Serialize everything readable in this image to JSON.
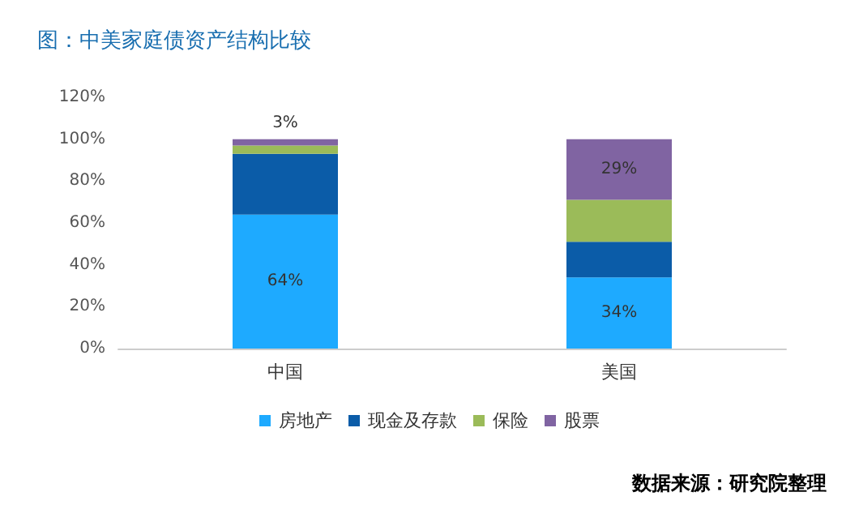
{
  "chart_data": {
    "type": "bar",
    "title": "图：中美家庭债资产结构比较",
    "annotations": [
      "数据来源：研究院整理"
    ],
    "categories": [
      "中国",
      "美国"
    ],
    "stacked": true,
    "series": [
      {
        "name": "房地产",
        "color": "#1eaaff",
        "values": [
          64,
          34
        ],
        "value_labels": [
          "64%",
          "34%"
        ]
      },
      {
        "name": "现金及存款",
        "color": "#0b5ca8",
        "values": [
          29,
          17
        ],
        "value_labels": [
          null,
          null
        ]
      },
      {
        "name": "保险",
        "color": "#9bbb59",
        "values": [
          4,
          20
        ],
        "value_labels": [
          null,
          null
        ]
      },
      {
        "name": "股票",
        "color": "#8064a2",
        "values": [
          3,
          29
        ],
        "value_labels": [
          "3%",
          "29%"
        ]
      }
    ],
    "ylim": [
      0,
      120
    ],
    "yticks": [
      {
        "value": 0,
        "label": "0%"
      },
      {
        "value": 20,
        "label": "20%"
      },
      {
        "value": 40,
        "label": "40%"
      },
      {
        "value": 60,
        "label": "60%"
      },
      {
        "value": 80,
        "label": "80%"
      },
      {
        "value": 100,
        "label": "100%"
      },
      {
        "value": 120,
        "label": "120%"
      }
    ],
    "grid": false,
    "legend": "bottom"
  }
}
